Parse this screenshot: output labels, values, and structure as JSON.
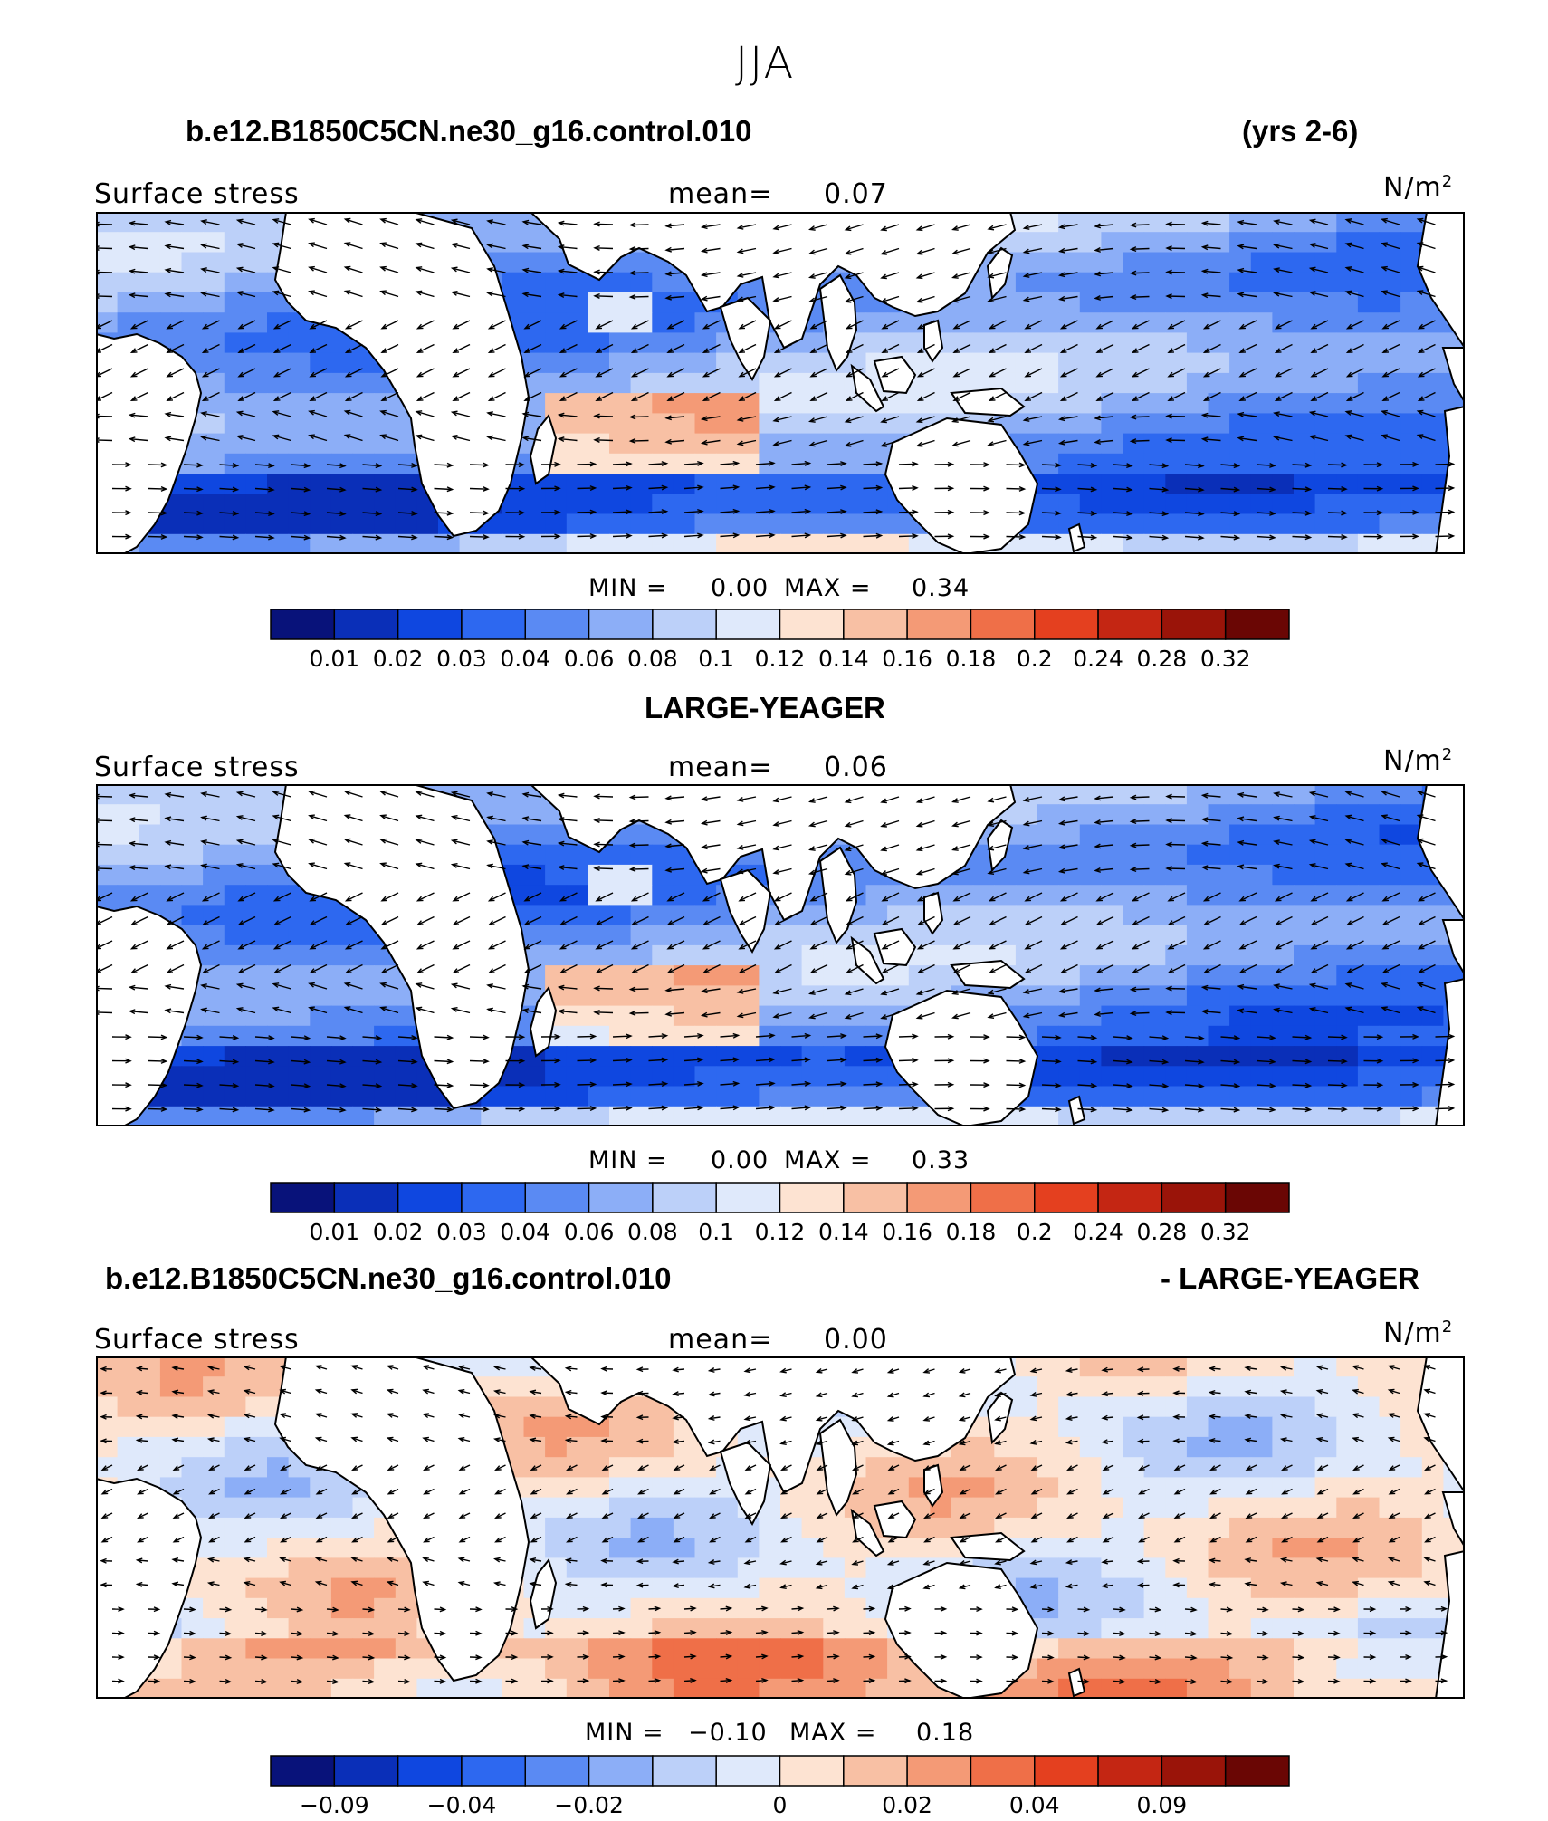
{
  "title": "JJA",
  "panels": [
    {
      "title_left": "b.e12.B1850C5CN.ne30_g16.control.010",
      "title_right": "(yrs 2-6)",
      "field_label": "Surface stress",
      "mean_label": "mean=",
      "mean_value": "0.07",
      "units_base": "N/m",
      "units_exp": "2",
      "min_label": "MIN =",
      "min_value": "0.00",
      "max_label": "MAX =",
      "max_value": "0.34",
      "colorbar_labels": [
        "0.01",
        "0.02",
        "0.03",
        "0.04",
        "0.06",
        "0.08",
        "0.1",
        "0.12",
        "0.14",
        "0.16",
        "0.18",
        "0.2",
        "0.24",
        "0.28",
        "0.32"
      ],
      "colorbar_levels": [
        0.01,
        0.02,
        0.03,
        0.04,
        0.06,
        0.08,
        0.1,
        0.12,
        0.14,
        0.16,
        0.18,
        0.2,
        0.24,
        0.28,
        0.32
      ]
    },
    {
      "title_left": "LARGE-YEAGER",
      "title_right": "",
      "field_label": "Surface stress",
      "mean_label": "mean=",
      "mean_value": "0.06",
      "units_base": "N/m",
      "units_exp": "2",
      "min_label": "MIN =",
      "min_value": "0.00",
      "max_label": "MAX =",
      "max_value": "0.33",
      "colorbar_labels": [
        "0.01",
        "0.02",
        "0.03",
        "0.04",
        "0.06",
        "0.08",
        "0.1",
        "0.12",
        "0.14",
        "0.16",
        "0.18",
        "0.2",
        "0.24",
        "0.28",
        "0.32"
      ],
      "colorbar_levels": [
        0.01,
        0.02,
        0.03,
        0.04,
        0.06,
        0.08,
        0.1,
        0.12,
        0.14,
        0.16,
        0.18,
        0.2,
        0.24,
        0.28,
        0.32
      ]
    },
    {
      "title_left": "b.e12.B1850C5CN.ne30_g16.control.010",
      "title_right": "- LARGE-YEAGER",
      "field_label": "Surface stress",
      "mean_label": "mean=",
      "mean_value": "0.00",
      "units_base": "N/m",
      "units_exp": "2",
      "min_label": "MIN =",
      "min_value": "−0.10",
      "max_label": "MAX =",
      "max_value": "0.18",
      "colorbar_labels": [
        "−0.09",
        "−0.04",
        "−0.02",
        "0",
        "0.02",
        "0.04",
        "0.09"
      ],
      "colorbar_levels": [
        -0.09,
        -0.04,
        -0.02,
        0,
        0.02,
        0.04,
        0.09
      ]
    }
  ],
  "colors": {
    "palette": [
      "#08127a",
      "#0a2fb8",
      "#0f47e0",
      "#2d68f0",
      "#5a8af3",
      "#8caef7",
      "#bcd0f9",
      "#dfe9fb",
      "#fde3d2",
      "#f8c0a4",
      "#f49a76",
      "#ef6f48",
      "#e4401f",
      "#c42613",
      "#9a1409",
      "#6a0604"
    ],
    "land": "#ffffff",
    "coast": "#000000"
  }
}
